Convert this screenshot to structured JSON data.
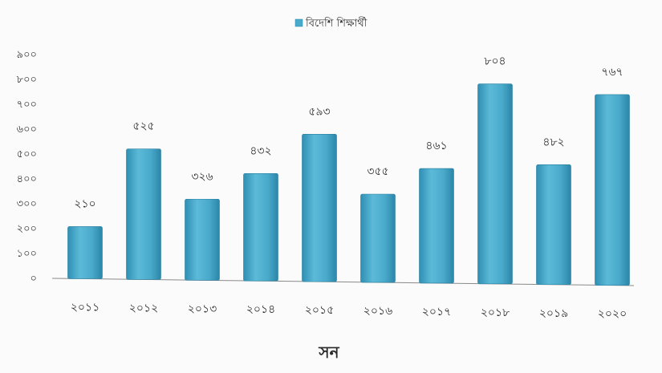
{
  "chart_data": {
    "type": "bar",
    "categories": [
      "২০১১",
      "২০১২",
      "২০১৩",
      "২০১৪",
      "২০১৫",
      "২০১৬",
      "২০১৭",
      "২০১৮",
      "২০১৯",
      "২০২০"
    ],
    "series": [
      {
        "name": "বিদেশি শিক্ষার্থী",
        "values": [
          210,
          525,
          326,
          432,
          593,
          355,
          461,
          804,
          482,
          767
        ],
        "value_labels": [
          "২১০",
          "৫২৫",
          "৩২৬",
          "৪৩২",
          "৫৯৩",
          "৩৫৫",
          "৪৬১",
          "৮০৪",
          "৪৮২",
          "৭৬৭"
        ],
        "color": "#4aaacb"
      }
    ],
    "title": "",
    "xlabel": "সন",
    "ylabel": "",
    "ylim": [
      0,
      900
    ],
    "yticks": [
      0,
      100,
      200,
      300,
      400,
      500,
      600,
      700,
      800,
      900
    ],
    "ytick_labels": [
      "০",
      "১০০",
      "২০০",
      "৩০০",
      "৪০০",
      "৫০০",
      "৬০০",
      "৭০০",
      "৮০০",
      "৯০০"
    ],
    "grid": false,
    "legend": "top-center"
  }
}
